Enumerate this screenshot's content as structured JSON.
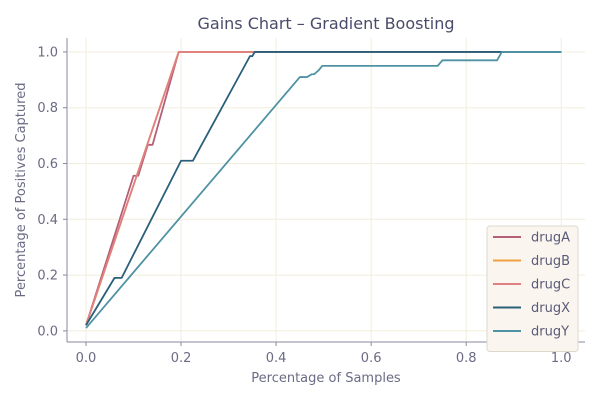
{
  "chart_data": {
    "type": "line",
    "title": "Gains Chart – Gradient Boosting",
    "xlabel": "Percentage of Samples",
    "ylabel": "Percentage of Positives Captured",
    "xlim": [
      -0.04,
      1.05
    ],
    "ylim": [
      -0.04,
      1.05
    ],
    "x_ticks": [
      "0.0",
      "0.2",
      "0.4",
      "0.6",
      "0.8",
      "1.0"
    ],
    "y_ticks": [
      "0.0",
      "0.2",
      "0.4",
      "0.6",
      "0.8",
      "1.0"
    ],
    "grid": true,
    "legend_position": "lower right",
    "series": [
      {
        "name": "drugA",
        "color": "#b5607a",
        "points": [
          [
            0.0,
            0.02
          ],
          [
            0.1,
            0.556
          ],
          [
            0.11,
            0.556
          ],
          [
            0.13,
            0.667
          ],
          [
            0.14,
            0.667
          ],
          [
            0.195,
            1.0
          ],
          [
            1.0,
            1.0
          ]
        ]
      },
      {
        "name": "drugB",
        "color": "#f0a040",
        "points": [
          [
            0.0,
            0.02
          ],
          [
            0.195,
            1.0
          ],
          [
            1.0,
            1.0
          ]
        ]
      },
      {
        "name": "drugC",
        "color": "#e08080",
        "points": [
          [
            0.0,
            0.02
          ],
          [
            0.195,
            1.0
          ],
          [
            1.0,
            1.0
          ]
        ]
      },
      {
        "name": "drugX",
        "color": "#2a5f7a",
        "points": [
          [
            0.0,
            0.02
          ],
          [
            0.06,
            0.19
          ],
          [
            0.075,
            0.19
          ],
          [
            0.2,
            0.61
          ],
          [
            0.225,
            0.61
          ],
          [
            0.345,
            0.985
          ],
          [
            0.35,
            0.985
          ],
          [
            0.355,
            1.0
          ],
          [
            1.0,
            1.0
          ]
        ]
      },
      {
        "name": "drugY",
        "color": "#4f92a3",
        "points": [
          [
            0.0,
            0.01
          ],
          [
            0.45,
            0.91
          ],
          [
            0.465,
            0.91
          ],
          [
            0.475,
            0.92
          ],
          [
            0.48,
            0.92
          ],
          [
            0.49,
            0.935
          ],
          [
            0.497,
            0.95
          ],
          [
            0.74,
            0.95
          ],
          [
            0.75,
            0.97
          ],
          [
            0.865,
            0.97
          ],
          [
            0.875,
            1.0
          ],
          [
            1.0,
            1.0
          ]
        ]
      }
    ]
  }
}
